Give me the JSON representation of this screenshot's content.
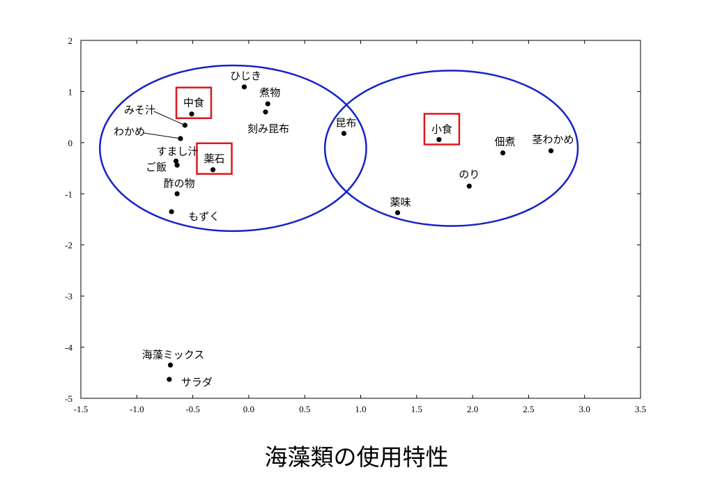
{
  "colors": {
    "ellipse": "#1422c8",
    "box": "#e0141e",
    "point": "#000000",
    "frame": "#000000"
  },
  "caption": "海藻類の使用特性",
  "chart_data": {
    "type": "scatter",
    "title": "",
    "xlabel": "",
    "ylabel": "",
    "xlim": [
      -1.5,
      3.5
    ],
    "ylim": [
      -5,
      2
    ],
    "grid": false,
    "xticks": [
      -1.5,
      -1.0,
      -0.5,
      0.0,
      0.5,
      1.0,
      1.5,
      2.0,
      2.5,
      3.0,
      3.5
    ],
    "xtick_labels": [
      "-1.5",
      "-1.0",
      "-0.5",
      "0.0",
      "0.5",
      "1.0",
      "1.5",
      "2.0",
      "2.5",
      "3.0",
      "3.5"
    ],
    "yticks": [
      2,
      1,
      0,
      -1,
      -2,
      -3,
      -4,
      -5
    ],
    "ytick_labels": [
      "2",
      "1",
      "0",
      "-1",
      "-2",
      "-3",
      "-4",
      "-5"
    ],
    "points": [
      {
        "label": "ひじき",
        "x": -0.04,
        "y": 1.09
      },
      {
        "label": "煮物",
        "x": 0.17,
        "y": 0.76
      },
      {
        "label": "刻み昆布",
        "x": 0.15,
        "y": 0.6
      },
      {
        "label": "中食",
        "x": -0.51,
        "y": 0.56,
        "boxed": true
      },
      {
        "label": "みそ汁",
        "x": -0.57,
        "y": 0.34
      },
      {
        "label": "わかめ",
        "x": -0.61,
        "y": 0.08
      },
      {
        "label": "すまし汁",
        "x": -0.65,
        "y": -0.36
      },
      {
        "label": "ご飯",
        "x": -0.64,
        "y": -0.44
      },
      {
        "label": "薬石",
        "x": -0.32,
        "y": -0.53,
        "boxed": true
      },
      {
        "label": "酢の物",
        "x": -0.64,
        "y": -1.0
      },
      {
        "label": "もずく",
        "x": -0.69,
        "y": -1.35
      },
      {
        "label": "昆布",
        "x": 0.85,
        "y": 0.18
      },
      {
        "label": "小食",
        "x": 1.7,
        "y": 0.06,
        "boxed": true
      },
      {
        "label": "佃煮",
        "x": 2.27,
        "y": -0.2
      },
      {
        "label": "茎わかめ",
        "x": 2.7,
        "y": -0.16
      },
      {
        "label": "のり",
        "x": 1.97,
        "y": -0.85
      },
      {
        "label": "薬味",
        "x": 1.33,
        "y": -1.37
      },
      {
        "label": "海藻ミックス",
        "x": -0.7,
        "y": -4.35
      },
      {
        "label": "サラダ",
        "x": -0.71,
        "y": -4.63
      }
    ],
    "ellipses": [
      {
        "cx": -0.14,
        "cy": -0.11,
        "rx": 1.19,
        "ry": 1.62
      },
      {
        "cx": 1.81,
        "cy": -0.11,
        "rx": 1.13,
        "ry": 1.52
      }
    ]
  }
}
